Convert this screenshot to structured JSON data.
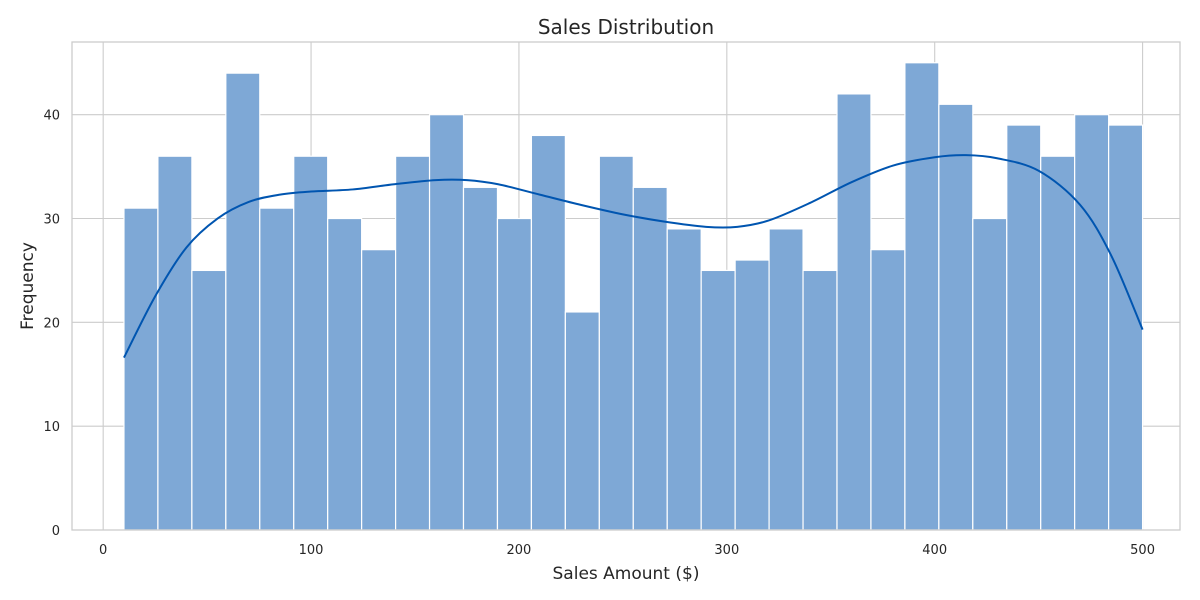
{
  "chart_data": {
    "type": "bar",
    "title": "Sales Distribution",
    "xlabel": "Sales Amount ($)",
    "ylabel": "Frequency",
    "xlim": [
      -15,
      518
    ],
    "ylim": [
      0,
      47
    ],
    "x_ticks": [
      0,
      100,
      200,
      300,
      400,
      500
    ],
    "y_ticks": [
      0,
      10,
      20,
      30,
      40
    ],
    "grid": true,
    "bins": {
      "edges": [
        10.0,
        26.33,
        42.67,
        59.0,
        75.33,
        91.67,
        108.0,
        124.33,
        140.67,
        157.0,
        173.33,
        189.67,
        206.0,
        222.33,
        238.67,
        255.0,
        271.33,
        287.67,
        304.0,
        320.33,
        336.67,
        353.0,
        369.33,
        385.67,
        402.0,
        418.33,
        434.67,
        451.0,
        467.33,
        483.67,
        500.0
      ],
      "counts": [
        31,
        36,
        25,
        44,
        31,
        36,
        30,
        27,
        36,
        40,
        33,
        30,
        38,
        21,
        36,
        33,
        29,
        25,
        26,
        29,
        25,
        42,
        27,
        45,
        41,
        30,
        39,
        36,
        40,
        39
      ]
    },
    "kde": {
      "x": [
        10,
        25,
        40,
        55,
        70,
        85,
        100,
        120,
        140,
        160,
        175,
        190,
        210,
        230,
        250,
        270,
        290,
        305,
        320,
        340,
        360,
        380,
        400,
        415,
        430,
        450,
        470,
        485,
        500
      ],
      "y": [
        16.6,
        22.5,
        27.2,
        30.0,
        31.6,
        32.3,
        32.6,
        32.8,
        33.3,
        33.7,
        33.7,
        33.3,
        32.3,
        31.3,
        30.4,
        29.7,
        29.2,
        29.2,
        29.8,
        31.5,
        33.5,
        35.1,
        35.9,
        36.1,
        35.8,
        34.6,
        31.3,
        26.4,
        19.3
      ]
    },
    "colors": {
      "bar": "#7ea8d6",
      "kde": "#0055b0",
      "grid": "#cccccc"
    }
  }
}
